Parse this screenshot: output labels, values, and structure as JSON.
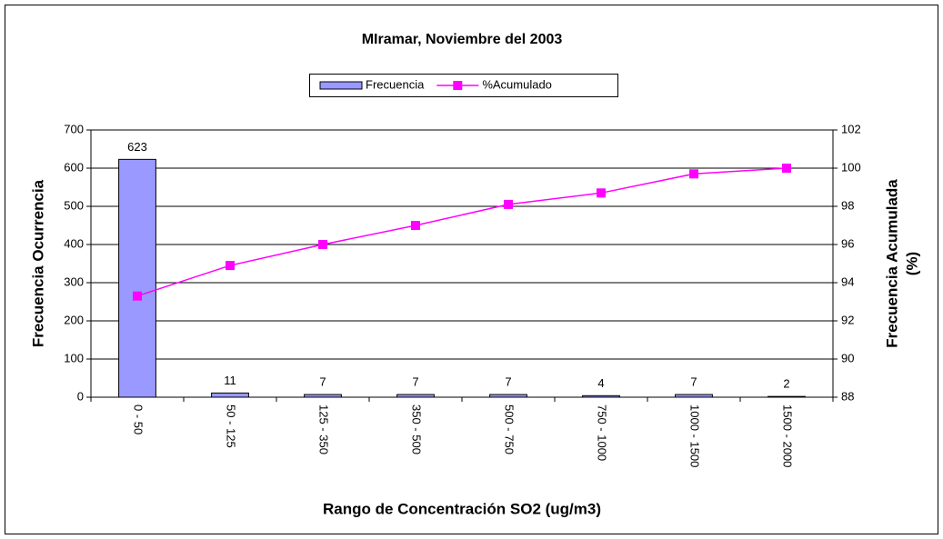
{
  "chart_data": {
    "type": "bar",
    "title": "MIramar, Noviembre del 2003",
    "x_label": "Rango de Concentración SO2 (ug/m3)",
    "y_label": "Frecuencia Ocurrencia",
    "y2_label": [
      "Frecuencia Acumulada",
      "(%)"
    ],
    "categories": [
      "0 - 50",
      "50 - 125",
      "125 - 350",
      "350 - 500",
      "500 - 750",
      "750 - 1000",
      "1000 - 1500",
      "1500 - 2000"
    ],
    "series": [
      {
        "name": "Frecuencia",
        "type": "bar",
        "color": "#9999ff",
        "values": [
          623,
          11,
          7,
          7,
          7,
          4,
          7,
          2
        ]
      },
      {
        "name": "%Acumulado",
        "type": "line",
        "axis": "y2",
        "color": "#ff00ff",
        "values": [
          93.3,
          94.9,
          96.0,
          97.0,
          98.1,
          98.7,
          99.7,
          100.0
        ]
      }
    ],
    "ylim": [
      0,
      700
    ],
    "yticks": [
      0,
      100,
      200,
      300,
      400,
      500,
      600,
      700
    ],
    "y2lim": [
      88,
      102
    ],
    "y2ticks": [
      88,
      90,
      92,
      94,
      96,
      98,
      100,
      102
    ],
    "grid": true,
    "legend": "top"
  }
}
